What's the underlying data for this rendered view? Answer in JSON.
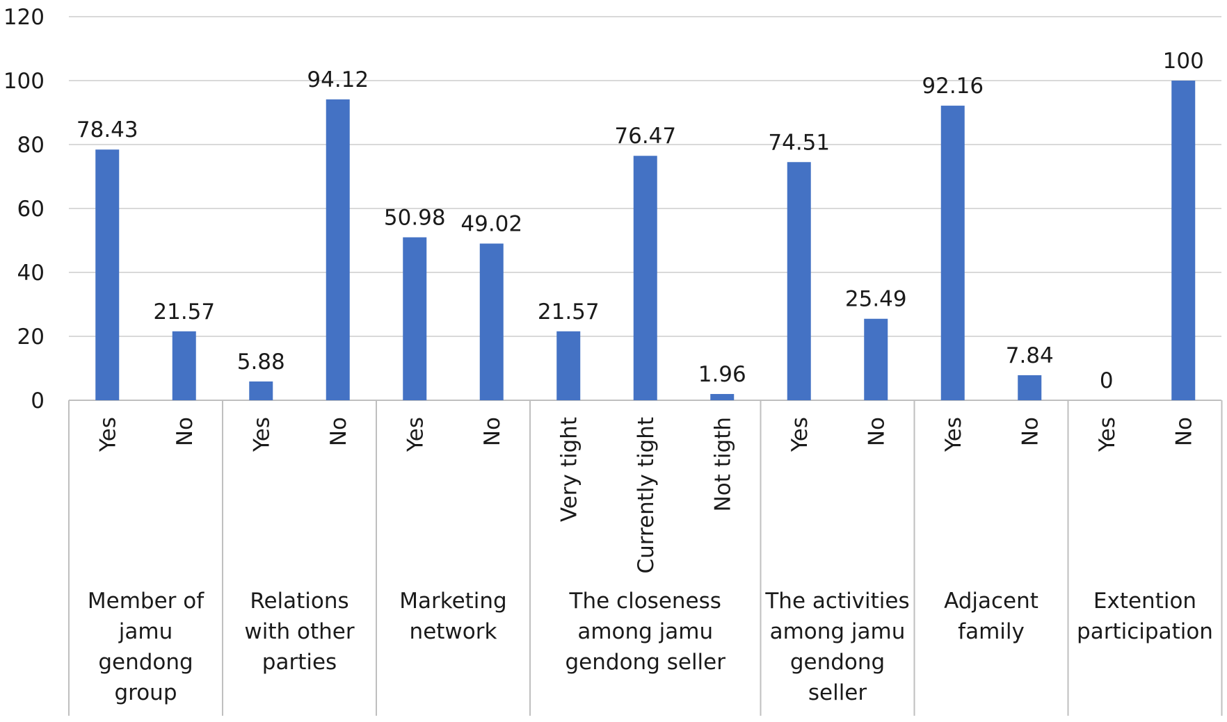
{
  "chart_data": {
    "type": "bar",
    "ylim": [
      0,
      120
    ],
    "yticks": [
      0,
      20,
      40,
      60,
      80,
      100,
      120
    ],
    "grid": true,
    "bar_color": "#4472C4",
    "groups": [
      {
        "name": [
          "Member of",
          "jamu",
          "gendong",
          "group"
        ],
        "categories": [
          "Yes",
          "No"
        ],
        "values": [
          78.43,
          21.57
        ],
        "labels": [
          "78.43",
          "21.57"
        ]
      },
      {
        "name": [
          "Relations",
          "with other",
          "parties"
        ],
        "categories": [
          "Yes",
          "No"
        ],
        "values": [
          5.88,
          94.12
        ],
        "labels": [
          "5.88",
          "94.12"
        ]
      },
      {
        "name": [
          "Marketing",
          "network"
        ],
        "categories": [
          "Yes",
          "No"
        ],
        "values": [
          50.98,
          49.02
        ],
        "labels": [
          "50.98",
          "49.02"
        ]
      },
      {
        "name": [
          "The closeness",
          "among jamu",
          "gendong seller"
        ],
        "categories": [
          "Very tight",
          "Currently tight",
          "Not tigth"
        ],
        "values": [
          21.57,
          76.47,
          1.96
        ],
        "labels": [
          "21.57",
          "76.47",
          "1.96"
        ]
      },
      {
        "name": [
          "The activities",
          "among jamu",
          "gendong",
          "seller"
        ],
        "categories": [
          "Yes",
          "No"
        ],
        "values": [
          74.51,
          25.49
        ],
        "labels": [
          "74.51",
          "25.49"
        ]
      },
      {
        "name": [
          "Adjacent",
          "family"
        ],
        "categories": [
          "Yes",
          "No"
        ],
        "values": [
          92.16,
          7.84
        ],
        "labels": [
          "92.16",
          "7.84"
        ]
      },
      {
        "name": [
          "Extention",
          "participation"
        ],
        "categories": [
          "Yes",
          "No"
        ],
        "values": [
          0,
          100
        ],
        "labels": [
          "0",
          "100"
        ]
      }
    ]
  }
}
